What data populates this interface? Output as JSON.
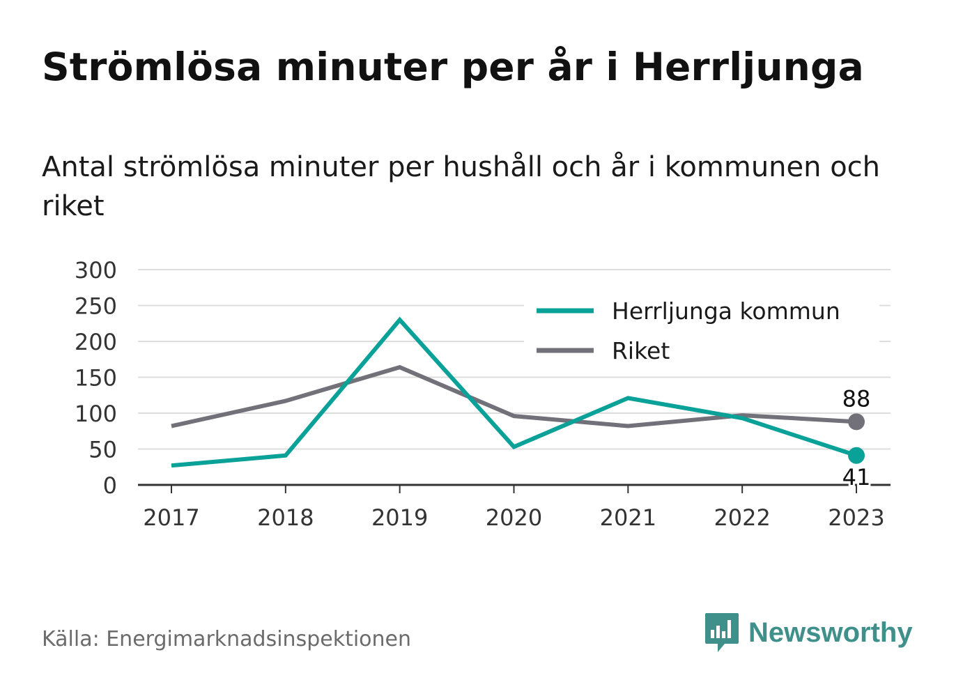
{
  "title": "Strömlösa minuter per år i Herrljunga",
  "subtitle": "Antal strömlösa minuter per hushåll och år i kommunen och riket",
  "source": "Källa: Energimarknadsinspektionen",
  "brand": "Newsworthy",
  "colors": {
    "kommun": "#0aa198",
    "riket": "#727179",
    "grid": "#dddddd",
    "axis": "#333333",
    "brand": "#3f8f8a"
  },
  "chart_data": {
    "type": "line",
    "categories": [
      "2017",
      "2018",
      "2019",
      "2020",
      "2021",
      "2022",
      "2023"
    ],
    "series": [
      {
        "name": "Herrljunga kommun",
        "key": "kommun",
        "values": [
          27,
          41,
          230,
          53,
          121,
          93,
          41
        ],
        "end_label": "41"
      },
      {
        "name": "Riket",
        "key": "riket",
        "values": [
          82,
          117,
          164,
          96,
          82,
          97,
          88
        ],
        "end_label": "88"
      }
    ],
    "ylim": [
      0,
      300
    ],
    "yticks": [
      0,
      50,
      100,
      150,
      200,
      250,
      300
    ],
    "grid": true,
    "legend": "top-right"
  }
}
